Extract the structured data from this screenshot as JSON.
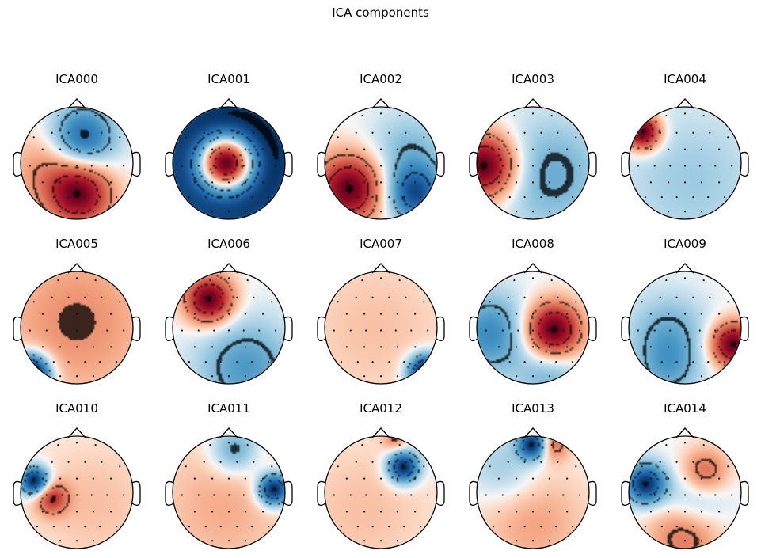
{
  "figure": {
    "title": "ICA components"
  },
  "components": [
    {
      "name": "ICA000",
      "sources": [
        [
          0.05,
          0.55,
          1.0,
          0.4
        ],
        [
          0.1,
          -0.45,
          -0.85,
          0.4
        ],
        [
          -0.5,
          0.1,
          0.35,
          0.5
        ]
      ]
    },
    {
      "name": "ICA001",
      "sources": [
        [
          -0.05,
          0.0,
          1.0,
          0.36
        ],
        [
          0.0,
          -0.05,
          -0.6,
          1.1
        ]
      ]
    },
    {
      "name": "ICA002",
      "sources": [
        [
          -0.55,
          0.45,
          1.0,
          0.42
        ],
        [
          0.6,
          0.55,
          -0.8,
          0.35
        ],
        [
          0.5,
          -0.2,
          -0.3,
          0.5
        ]
      ]
    },
    {
      "name": "ICA003",
      "sources": [
        [
          -0.85,
          0.05,
          1.0,
          0.4
        ],
        [
          0.3,
          0.2,
          -0.35,
          0.7
        ]
      ]
    },
    {
      "name": "ICA004",
      "sources": [
        [
          -0.75,
          -0.55,
          1.0,
          0.22
        ],
        [
          0.1,
          0.3,
          -0.2,
          0.9
        ]
      ]
    },
    {
      "name": "ICA005",
      "sources": [
        [
          -0.85,
          0.85,
          -1.0,
          0.25
        ],
        [
          0.0,
          -0.1,
          0.2,
          1.0
        ]
      ]
    },
    {
      "name": "ICA006",
      "sources": [
        [
          -0.35,
          -0.5,
          1.0,
          0.3
        ],
        [
          0.3,
          0.7,
          -0.45,
          0.6
        ]
      ]
    },
    {
      "name": "ICA007",
      "sources": [
        [
          0.8,
          0.8,
          -1.0,
          0.22
        ],
        [
          -0.1,
          0.0,
          0.12,
          1.0
        ]
      ]
    },
    {
      "name": "ICA008",
      "sources": [
        [
          0.35,
          0.05,
          1.0,
          0.35
        ],
        [
          -0.75,
          0.1,
          -0.5,
          0.5
        ],
        [
          0.3,
          0.85,
          -0.3,
          0.4
        ]
      ]
    },
    {
      "name": "ICA009",
      "sources": [
        [
          0.85,
          0.3,
          1.0,
          0.28
        ],
        [
          -0.3,
          0.1,
          -0.35,
          0.5
        ],
        [
          -0.3,
          0.75,
          -0.3,
          0.4
        ]
      ]
    },
    {
      "name": "ICA010",
      "sources": [
        [
          -0.75,
          -0.2,
          -1.0,
          0.18
        ],
        [
          -0.45,
          0.1,
          0.55,
          0.2
        ],
        [
          0.3,
          0.2,
          0.15,
          0.8
        ]
      ]
    },
    {
      "name": "ICA011",
      "sources": [
        [
          0.8,
          -0.05,
          -1.0,
          0.2
        ],
        [
          -0.1,
          0.25,
          0.2,
          0.9
        ],
        [
          0.1,
          -0.75,
          -0.4,
          0.3
        ]
      ]
    },
    {
      "name": "ICA012",
      "sources": [
        [
          0.4,
          -0.45,
          -1.0,
          0.2
        ],
        [
          -0.3,
          0.3,
          0.15,
          0.9
        ],
        [
          0.25,
          -0.95,
          0.3,
          0.15
        ]
      ]
    },
    {
      "name": "ICA013",
      "sources": [
        [
          0.0,
          -0.85,
          -1.0,
          0.18
        ],
        [
          0.35,
          -0.85,
          0.45,
          0.2
        ],
        [
          0.0,
          0.5,
          0.25,
          0.7
        ],
        [
          -0.5,
          -0.4,
          -0.25,
          0.45
        ]
      ]
    },
    {
      "name": "ICA014",
      "sources": [
        [
          -0.7,
          -0.15,
          -1.0,
          0.25
        ],
        [
          0.35,
          -0.35,
          0.55,
          0.3
        ],
        [
          0.0,
          0.75,
          0.45,
          0.45
        ],
        [
          0.2,
          0.1,
          -0.35,
          0.4
        ]
      ]
    }
  ]
}
